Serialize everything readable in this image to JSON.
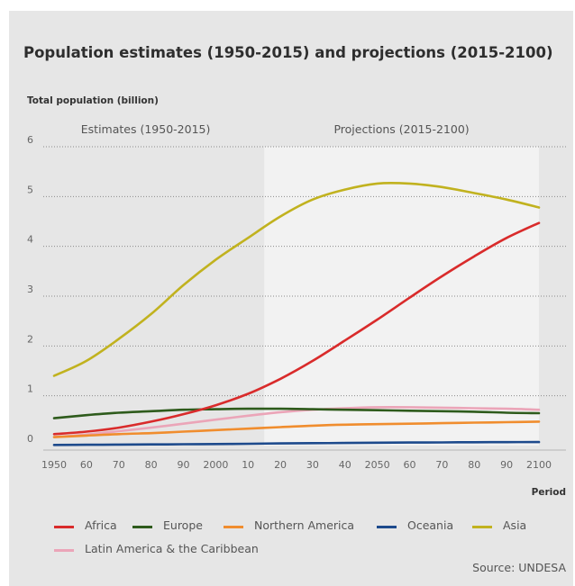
{
  "title": "Population estimates (1950-2015) and projections (2015-2100)",
  "source": "Source: UNDESA",
  "chart_data": {
    "type": "line",
    "ylabel": "Total population (billion)",
    "xlabel": "Period",
    "xlim": [
      1950,
      2100
    ],
    "ylim": [
      0,
      6
    ],
    "grid": "horizontal-dotted",
    "x_ticks": [
      1950,
      1960,
      1970,
      1980,
      1990,
      2000,
      2010,
      2020,
      2030,
      2040,
      2050,
      2060,
      2070,
      2080,
      2090,
      2100
    ],
    "x_tick_labels": [
      "1950",
      "60",
      "70",
      "80",
      "90",
      "2000",
      "10",
      "20",
      "30",
      "40",
      "2050",
      "60",
      "70",
      "80",
      "90",
      "2100"
    ],
    "y_ticks": [
      0,
      1,
      2,
      3,
      4,
      5,
      6
    ],
    "y_tick_labels": [
      "0",
      "1",
      "2",
      "3",
      "4",
      "5",
      "6"
    ],
    "regions": [
      {
        "label": "Estimates (1950-2015)",
        "from": 1950,
        "to": 2015,
        "color": "#e6e6e6"
      },
      {
        "label": "Projections (2015-2100)",
        "from": 2015,
        "to": 2100,
        "color": "#f2f2f2"
      }
    ],
    "legend_position": "bottom",
    "x": [
      1950,
      1960,
      1970,
      1980,
      1990,
      2000,
      2010,
      2020,
      2030,
      2040,
      2050,
      2060,
      2070,
      2080,
      2090,
      2100
    ],
    "series": [
      {
        "name": "Latin America & the Caribbean",
        "color": "#eba5b8",
        "values": [
          0.17,
          0.22,
          0.29,
          0.36,
          0.44,
          0.52,
          0.6,
          0.67,
          0.72,
          0.75,
          0.77,
          0.77,
          0.76,
          0.75,
          0.74,
          0.72
        ]
      },
      {
        "name": "Oceania",
        "color": "#1d4a8c",
        "values": [
          0.013,
          0.016,
          0.02,
          0.023,
          0.027,
          0.031,
          0.037,
          0.043,
          0.048,
          0.053,
          0.057,
          0.061,
          0.064,
          0.067,
          0.069,
          0.071
        ]
      },
      {
        "name": "Northern America",
        "color": "#f08d2e",
        "values": [
          0.17,
          0.2,
          0.23,
          0.25,
          0.28,
          0.31,
          0.34,
          0.37,
          0.4,
          0.42,
          0.43,
          0.44,
          0.45,
          0.46,
          0.47,
          0.48
        ]
      },
      {
        "name": "Europe",
        "color": "#2e5b1c",
        "values": [
          0.55,
          0.61,
          0.66,
          0.69,
          0.72,
          0.73,
          0.74,
          0.74,
          0.73,
          0.72,
          0.71,
          0.7,
          0.69,
          0.68,
          0.66,
          0.65
        ]
      },
      {
        "name": "Africa",
        "color": "#d92b2b",
        "values": [
          0.23,
          0.28,
          0.36,
          0.48,
          0.63,
          0.81,
          1.04,
          1.34,
          1.7,
          2.11,
          2.53,
          2.97,
          3.4,
          3.8,
          4.17,
          4.47
        ]
      },
      {
        "name": "Asia",
        "color": "#c1b21f",
        "values": [
          1.4,
          1.7,
          2.14,
          2.64,
          3.22,
          3.73,
          4.17,
          4.6,
          4.94,
          5.14,
          5.26,
          5.26,
          5.19,
          5.07,
          4.94,
          4.78
        ]
      }
    ],
    "legend_order": [
      "Africa",
      "Europe",
      "Northern America",
      "Oceania",
      "Asia",
      "Latin America & the Caribbean"
    ]
  }
}
